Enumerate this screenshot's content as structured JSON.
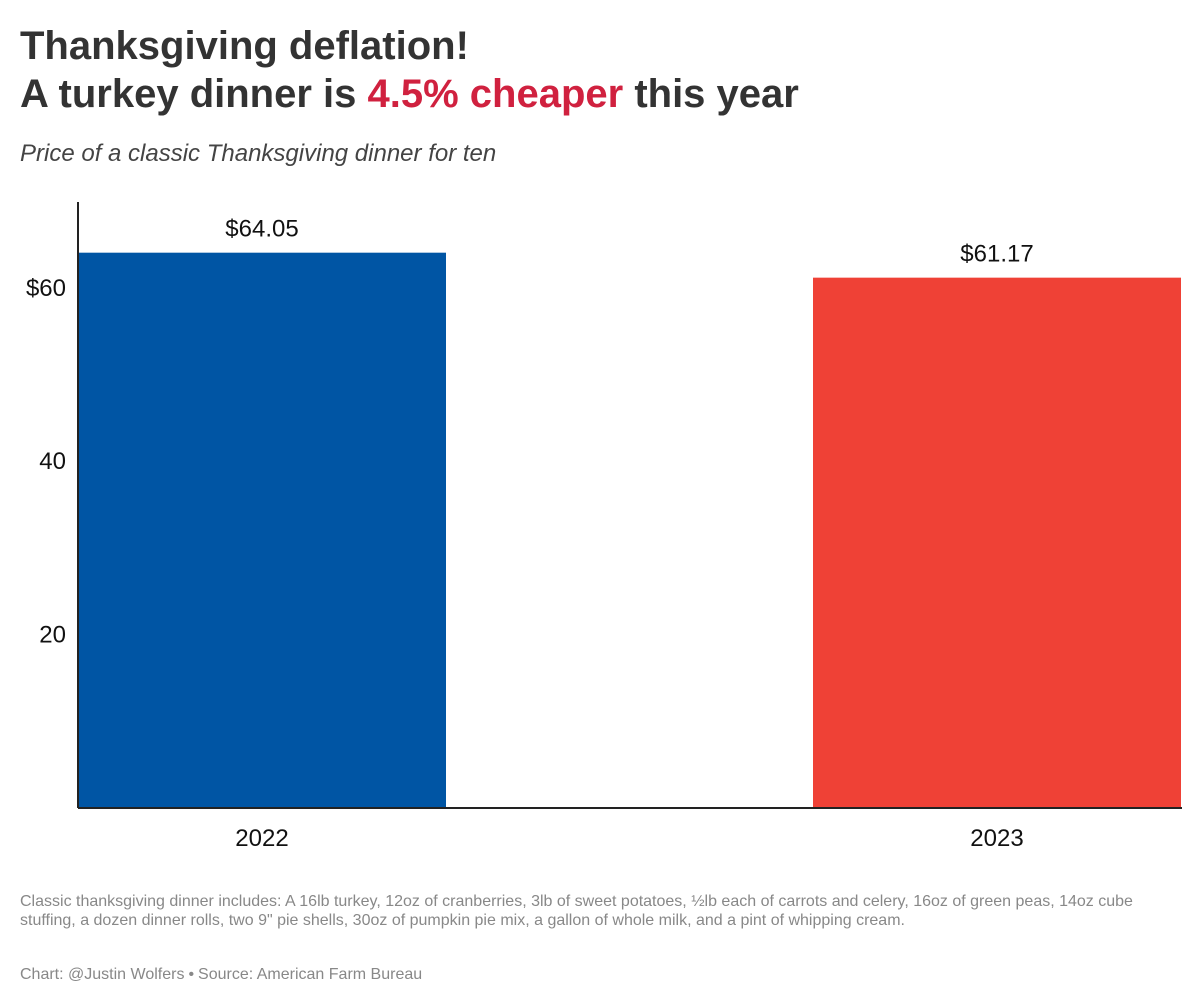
{
  "header": {
    "title_line1": "Thanksgiving deflation!",
    "title_line2_prefix": "A turkey dinner is ",
    "title_line2_highlight": "4.5% cheaper",
    "title_line2_suffix": " this year",
    "subtitle": "Price of a classic Thanksgiving dinner for ten"
  },
  "footer": {
    "note": "Classic thanksgiving dinner includes: A 16lb turkey, 12oz of cranberries, 3lb of sweet potatoes, ½lb each of carrots and celery, 16oz of green peas, 14oz cube stuffing, a dozen dinner rolls, two 9\" pie shells, 30oz of pumpkin pie mix, a gallon of whole milk, and a pint of whipping cream.",
    "chart_credit": "Chart: @Justin Wolfers",
    "separator": "•",
    "source": "Source: American Farm Bureau"
  },
  "colors": {
    "highlight": "#d0213f",
    "bar_2022": "#0055a4",
    "bar_2023": "#ef4136",
    "text": "#333333",
    "muted": "#888888"
  },
  "chart_data": {
    "type": "bar",
    "title": "Thanksgiving deflation! A turkey dinner is 4.5% cheaper this year",
    "subtitle": "Price of a classic Thanksgiving dinner for ten",
    "categories": [
      "2022",
      "2023"
    ],
    "values": [
      64.05,
      61.17
    ],
    "data_labels": [
      "$64.05",
      "$61.17"
    ],
    "ylim": [
      0,
      70
    ],
    "yticks": [
      {
        "value": 20,
        "label": "20"
      },
      {
        "value": 40,
        "label": "40"
      },
      {
        "value": 60,
        "label": "$60"
      }
    ],
    "xlabel": "",
    "ylabel": "",
    "grid": false,
    "legend": "none"
  }
}
